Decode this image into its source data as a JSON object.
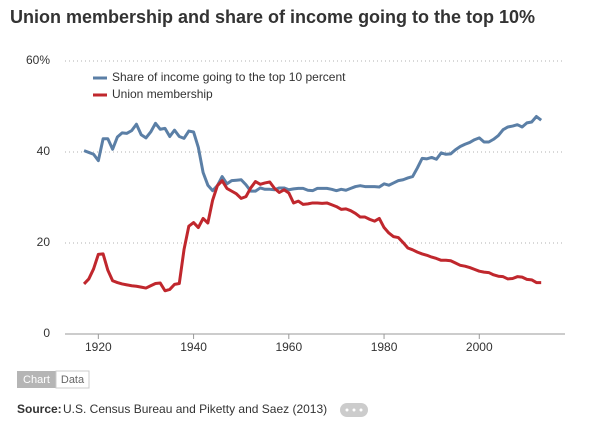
{
  "chart_data": {
    "type": "line",
    "title": "Union membership and share of income going to the top 10%",
    "x": [
      1917,
      1918,
      1919,
      1920,
      1921,
      1922,
      1923,
      1924,
      1925,
      1926,
      1927,
      1928,
      1929,
      1930,
      1931,
      1932,
      1933,
      1934,
      1935,
      1936,
      1937,
      1938,
      1939,
      1940,
      1941,
      1942,
      1943,
      1944,
      1945,
      1946,
      1947,
      1948,
      1949,
      1950,
      1951,
      1952,
      1953,
      1954,
      1955,
      1956,
      1957,
      1958,
      1959,
      1960,
      1961,
      1962,
      1963,
      1964,
      1965,
      1966,
      1967,
      1968,
      1969,
      1970,
      1971,
      1972,
      1973,
      1974,
      1975,
      1976,
      1977,
      1978,
      1979,
      1980,
      1981,
      1982,
      1983,
      1984,
      1985,
      1986,
      1987,
      1988,
      1989,
      1990,
      1991,
      1992,
      1993,
      1994,
      1995,
      1996,
      1997,
      1998,
      1999,
      2000,
      2001,
      2002,
      2003,
      2004,
      2005,
      2006,
      2007,
      2008,
      2009,
      2010,
      2011,
      2012,
      2013
    ],
    "series": [
      {
        "name": "Share of income going to the top 10 percent",
        "color": "#5b7fa6",
        "values": [
          40.3,
          39.9,
          39.5,
          38.1,
          42.9,
          42.9,
          40.6,
          43.3,
          44.2,
          44.1,
          44.7,
          46.1,
          43.8,
          43.1,
          44.4,
          46.3,
          45.0,
          45.2,
          43.4,
          44.8,
          43.4,
          43.0,
          44.6,
          44.4,
          41.0,
          35.5,
          32.7,
          31.5,
          32.6,
          34.6,
          33.0,
          33.7,
          33.8,
          33.9,
          32.8,
          31.4,
          31.4,
          32.1,
          31.8,
          31.8,
          31.7,
          32.1,
          32.1,
          31.7,
          31.9,
          32.0,
          32.0,
          31.6,
          31.5,
          32.0,
          32.0,
          32.0,
          31.8,
          31.5,
          31.8,
          31.6,
          32.0,
          32.4,
          32.6,
          32.4,
          32.4,
          32.4,
          32.3,
          33.0,
          32.7,
          33.2,
          33.7,
          33.9,
          34.3,
          34.6,
          36.5,
          38.6,
          38.5,
          38.8,
          38.4,
          39.8,
          39.5,
          39.6,
          40.5,
          41.2,
          41.7,
          42.1,
          42.7,
          43.1,
          42.2,
          42.2,
          42.8,
          43.6,
          44.9,
          45.5,
          45.7,
          46.0,
          45.5,
          46.4,
          46.6,
          47.8,
          47.0
        ]
      },
      {
        "name": "Union membership",
        "color": "#c0272d",
        "values": [
          11.0,
          12.1,
          14.3,
          17.5,
          17.6,
          14.0,
          11.7,
          11.3,
          11.0,
          10.8,
          10.6,
          10.5,
          10.3,
          10.1,
          10.6,
          11.1,
          11.2,
          9.5,
          9.8,
          10.9,
          11.1,
          18.6,
          23.7,
          24.5,
          23.4,
          25.4,
          24.4,
          29.4,
          32.6,
          33.7,
          32.0,
          31.4,
          30.8,
          29.8,
          30.2,
          32.1,
          33.5,
          32.9,
          33.2,
          33.4,
          32.0,
          31.1,
          31.7,
          31.0,
          28.8,
          29.2,
          28.5,
          28.6,
          28.8,
          28.8,
          28.7,
          28.8,
          28.4,
          28.0,
          27.4,
          27.5,
          27.1,
          26.5,
          25.7,
          25.7,
          25.2,
          24.8,
          25.4,
          23.4,
          22.2,
          21.4,
          21.2,
          20.1,
          18.9,
          18.5,
          18.0,
          17.6,
          17.3,
          16.9,
          16.6,
          16.2,
          16.2,
          16.1,
          15.6,
          15.1,
          14.9,
          14.6,
          14.2,
          13.8,
          13.6,
          13.5,
          13.0,
          12.7,
          12.6,
          12.1,
          12.2,
          12.6,
          12.5,
          12.0,
          11.9,
          11.3,
          11.3
        ]
      }
    ],
    "xlim": [
      1913,
      2018
    ],
    "xticks": [
      1920,
      1940,
      1960,
      1980,
      2000
    ],
    "ylim": [
      0,
      60
    ],
    "yticks": [
      0,
      20,
      40,
      {
        "value": 60,
        "label": "60%"
      }
    ],
    "grid": true,
    "legend": "top-left"
  },
  "tabs": [
    "Chart",
    "Data"
  ],
  "source_label": "Source:",
  "source": "U.S. Census Bureau and Piketty and Saez (2013)"
}
